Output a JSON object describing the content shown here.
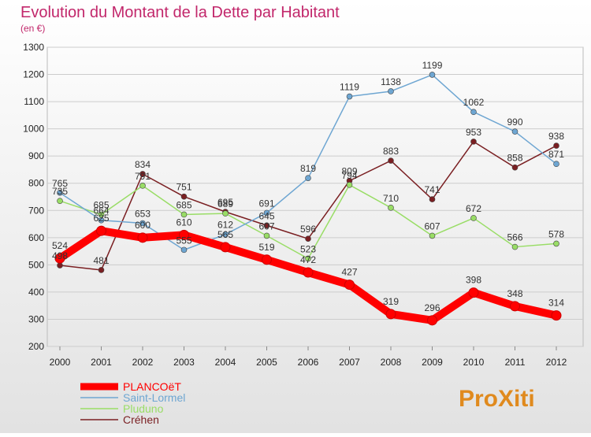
{
  "chart_data": {
    "type": "line",
    "title": "Evolution du Montant de la Dette par Habitant",
    "subtitle": "(en €)",
    "xlabel": "",
    "ylabel": "",
    "x": [
      "2000",
      "2001",
      "2002",
      "2003",
      "2004",
      "2005",
      "2006",
      "2007",
      "2008",
      "2009",
      "2010",
      "2011",
      "2012"
    ],
    "ylim": [
      200,
      1300
    ],
    "yticks": [
      200,
      300,
      400,
      500,
      600,
      700,
      800,
      900,
      1000,
      1100,
      1200,
      1300
    ],
    "grid": true,
    "legend_position": "bottom-left",
    "series": [
      {
        "name": "PLANCOëT",
        "color": "#ff0000",
        "values": [
          524,
          625,
          600,
          610,
          565,
          519,
          472,
          427,
          319,
          296,
          398,
          348,
          314
        ]
      },
      {
        "name": "Saint-Lormel",
        "color": "#6ea6d2",
        "values": [
          765,
          664,
          653,
          555,
          612,
          691,
          819,
          1119,
          1138,
          1199,
          1062,
          990,
          871
        ]
      },
      {
        "name": "Pluduno",
        "color": "#99dd66",
        "values": [
          735,
          685,
          791,
          685,
          689,
          607,
          523,
          794,
          710,
          607,
          672,
          566,
          578
        ]
      },
      {
        "name": "Créhen",
        "color": "#7a1f22",
        "values": [
          498,
          481,
          834,
          751,
          695,
          645,
          596,
          809,
          883,
          741,
          953,
          858,
          938
        ]
      }
    ]
  },
  "logo": {
    "text": "ProXiti"
  }
}
